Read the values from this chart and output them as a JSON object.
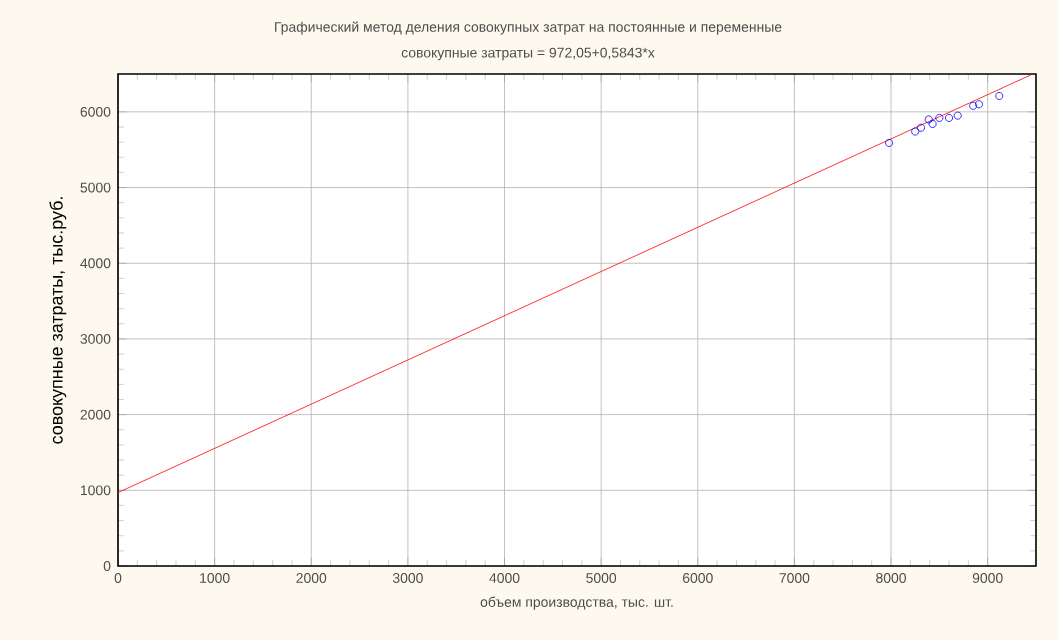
{
  "chart_data": {
    "type": "scatter",
    "title": "Графический метод деления совокупных затрат на постоянные и переменные",
    "subtitle": "совокупные затраты = 972,05+0,5843*x",
    "xlabel": "объем производства, тыс. шт.",
    "ylabel": "совокупные затраты, тыс.руб.",
    "series": [
      {
        "color": "#0000ff",
        "marker": "circle",
        "x": [
          7980,
          8250,
          8310,
          8390,
          8430,
          8500,
          8600,
          8690,
          8850,
          8910,
          9120
        ],
        "values": [
          5590,
          5740,
          5790,
          5900,
          5840,
          5920,
          5920,
          5950,
          6080,
          6100,
          6210
        ]
      },
      {
        "type": "line",
        "color": "#ff0000",
        "line_style": "solid",
        "x": [
          0,
          9450
        ],
        "values": [
          970,
          6490
        ]
      }
    ],
    "xlim": [
      0,
      9500
    ],
    "ylim": [
      0,
      6500
    ],
    "xticks": [
      0,
      1000,
      2000,
      3000,
      4000,
      5000,
      6000,
      7000,
      8000,
      9000
    ],
    "yticks": [
      0,
      1000,
      2000,
      3000,
      4000,
      5000,
      6000
    ],
    "grid": true
  }
}
